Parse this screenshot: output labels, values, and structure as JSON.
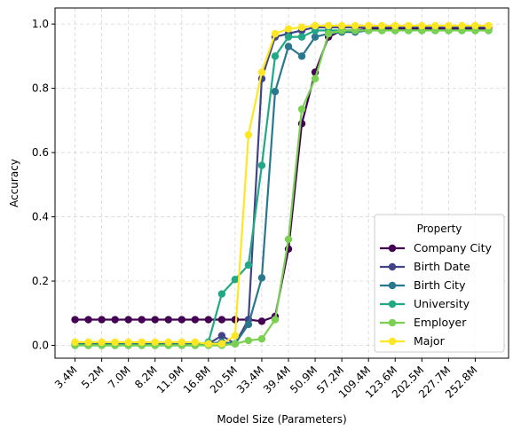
{
  "chart_data": {
    "type": "line",
    "title": "",
    "xlabel": "Model Size (Parameters)",
    "ylabel": "Accuracy",
    "ylim": [
      -0.04,
      1.05
    ],
    "yticks": [
      0.0,
      0.2,
      0.4,
      0.6,
      0.8,
      1.0
    ],
    "ytick_labels": [
      "0.0",
      "0.2",
      "0.4",
      "0.6",
      "0.8",
      "1.0"
    ],
    "x_index": [
      0,
      1,
      2,
      3,
      4,
      5,
      6,
      7,
      8,
      9,
      10,
      11,
      12,
      13,
      14,
      15,
      16,
      17,
      18,
      19,
      20,
      21,
      22,
      23,
      24,
      25,
      26,
      27,
      28,
      29,
      30,
      31
    ],
    "x_ticks": [
      0,
      2,
      4,
      6,
      8,
      10,
      12,
      14,
      16,
      18,
      20,
      22,
      24,
      26,
      28,
      30
    ],
    "x_tick_labels": [
      "3.4M",
      "5.2M",
      "7.0M",
      "8.2M",
      "11.9M",
      "16.8M",
      "20.5M",
      "33.4M",
      "39.4M",
      "50.9M",
      "57.2M",
      "109.4M",
      "123.6M",
      "202.5M",
      "227.7M",
      "252.8M"
    ],
    "grid": true,
    "legend": {
      "title": "Property",
      "placement": "lower-right"
    },
    "series": [
      {
        "name": "Company City",
        "color": "#440154",
        "values": [
          0.08,
          0.08,
          0.08,
          0.08,
          0.08,
          0.08,
          0.08,
          0.08,
          0.08,
          0.08,
          0.08,
          0.08,
          0.08,
          0.08,
          0.075,
          0.09,
          0.3,
          0.69,
          0.85,
          0.96,
          0.98,
          0.98,
          0.985,
          0.985,
          0.985,
          0.985,
          0.985,
          0.985,
          0.985,
          0.985,
          0.985,
          0.985
        ]
      },
      {
        "name": "Birth Date",
        "color": "#414487",
        "values": [
          0.005,
          0.005,
          0.005,
          0.005,
          0.005,
          0.005,
          0.005,
          0.005,
          0.005,
          0.005,
          0.005,
          0.03,
          0.005,
          0.08,
          0.83,
          0.96,
          0.97,
          0.98,
          0.99,
          0.99,
          0.99,
          0.99,
          0.99,
          0.99,
          0.99,
          0.99,
          0.99,
          0.99,
          0.99,
          0.99,
          0.99,
          0.99
        ]
      },
      {
        "name": "Birth City",
        "color": "#2a788e",
        "values": [
          0.005,
          0.005,
          0.005,
          0.005,
          0.005,
          0.005,
          0.005,
          0.005,
          0.005,
          0.005,
          0.005,
          0.01,
          0.005,
          0.065,
          0.21,
          0.79,
          0.93,
          0.9,
          0.96,
          0.97,
          0.975,
          0.975,
          0.98,
          0.98,
          0.98,
          0.98,
          0.98,
          0.98,
          0.98,
          0.98,
          0.98,
          0.98
        ]
      },
      {
        "name": "University",
        "color": "#22a884",
        "values": [
          0.0,
          0.0,
          0.0,
          0.0,
          0.0,
          0.0,
          0.0,
          0.0,
          0.0,
          0.0,
          0.01,
          0.16,
          0.205,
          0.25,
          0.56,
          0.9,
          0.96,
          0.96,
          0.98,
          0.98,
          0.98,
          0.98,
          0.98,
          0.98,
          0.98,
          0.98,
          0.98,
          0.98,
          0.98,
          0.98,
          0.98,
          0.98
        ]
      },
      {
        "name": "Employer",
        "color": "#7ad151",
        "values": [
          0.0,
          0.0,
          0.0,
          0.0,
          0.0,
          0.0,
          0.0,
          0.0,
          0.0,
          0.0,
          0.0,
          0.0,
          0.005,
          0.015,
          0.02,
          0.08,
          0.33,
          0.735,
          0.83,
          0.97,
          0.98,
          0.98,
          0.98,
          0.98,
          0.98,
          0.98,
          0.98,
          0.98,
          0.98,
          0.98,
          0.98,
          0.98
        ]
      },
      {
        "name": "Major",
        "color": "#fde725",
        "values": [
          0.01,
          0.01,
          0.01,
          0.01,
          0.01,
          0.01,
          0.01,
          0.01,
          0.01,
          0.01,
          0.005,
          0.005,
          0.03,
          0.655,
          0.85,
          0.97,
          0.985,
          0.99,
          0.995,
          0.995,
          0.995,
          0.995,
          0.995,
          0.995,
          0.995,
          0.995,
          0.995,
          0.995,
          0.995,
          0.995,
          0.995,
          0.995
        ]
      }
    ]
  }
}
